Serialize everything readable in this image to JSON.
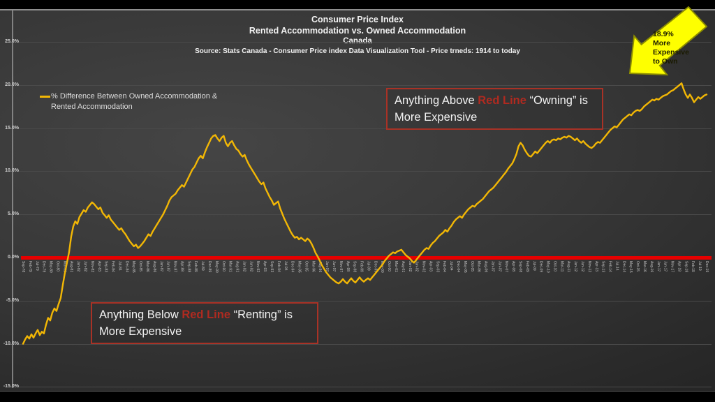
{
  "slide": {
    "title_lines": [
      "Consumer Price Index",
      "Rented Accommodation vs. Owned Accommodation",
      "Canada",
      "Source: Stats Canada - Consumer Price index Data Visualization Tool - Price trneds: 1914 to today"
    ],
    "legend": {
      "line1": "% Difference Between Owned Accommodation &",
      "line2": "Rented Accommodation"
    },
    "annotations": {
      "above": {
        "pre": "Anything Above ",
        "highlight": "Red Line",
        "post": " “Owning” is More Expensive"
      },
      "below": {
        "pre": "Anything Below ",
        "highlight": "Red Line",
        "post": " “Renting” is More Expensive"
      }
    },
    "arrow_callout": {
      "text_lines": [
        "18.9%",
        "More",
        "Expensive",
        "to Own"
      ]
    },
    "colors": {
      "line": "#f2b705",
      "zero_line": "#e60000",
      "annotation_border": "#a93226",
      "annotation_highlight": "#b02a20",
      "arrow_fill": "#feff00",
      "arrow_outline": "#8c8c00",
      "grid": "#4a4a4a"
    }
  },
  "chart_data": {
    "type": "line",
    "title": "Consumer Price Index — Rented Accommodation vs. Owned Accommodation (Canada)",
    "xlabel": "",
    "ylabel": "% difference",
    "ylim": [
      -15,
      25
    ],
    "grid": true,
    "legend_position": "top-left",
    "zero_baseline": 0,
    "final_value_pct": 18.9,
    "y_tick_labels": [
      "25.0%",
      "20.0%",
      "15.0%",
      "10.0%",
      "5.0%",
      "0.0%",
      "-5.0%",
      "-10.0%",
      "-15.0%"
    ],
    "y_tick_values": [
      25,
      20,
      15,
      10,
      5,
      0,
      -5,
      -10,
      -15
    ],
    "x_tick_labels": [
      "Sep-78",
      "Feb-79",
      "Jul-79",
      "Dec-79",
      "May-80",
      "Oct-80",
      "Mar-81",
      "Aug-81",
      "Jan-82",
      "Jun-82",
      "Nov-82",
      "Apr-83",
      "Sep-83",
      "Feb-84",
      "Jul-84",
      "Dec-84",
      "May-85",
      "Oct-85",
      "Mar-86",
      "Aug-86",
      "Jan-87",
      "Jun-87",
      "Nov-87",
      "Apr-88",
      "Sep-88",
      "Feb-89",
      "Jul-89",
      "Dec-89",
      "May-90",
      "Oct-90",
      "Mar-91",
      "Aug-91",
      "Jan-92",
      "Jun-92",
      "Nov-92",
      "Apr-93",
      "Sep-93",
      "Feb-94",
      "Jul-94",
      "Dec-94",
      "May-95",
      "Oct-95",
      "Mar-96",
      "Aug-96",
      "Jan-97",
      "Jun-97",
      "Nov-97",
      "Apr-98",
      "Sep-98",
      "Feb-99",
      "Jul-99",
      "Dec-99",
      "May-00",
      "Oct-00",
      "Mar-01",
      "Aug-01",
      "Jan-02",
      "Jun-02",
      "Nov-02",
      "Apr-03",
      "Sep-03",
      "Feb-04",
      "Jul-04",
      "Dec-04",
      "May-05",
      "Oct-05",
      "Mar-06",
      "Aug-06",
      "Jan-07",
      "Jun-07",
      "Nov-07",
      "Apr-08",
      "Sep-08",
      "Feb-09",
      "Jul-09",
      "Dec-09",
      "May-10",
      "Oct-10",
      "Mar-11",
      "Aug-11",
      "Jan-12",
      "Jun-12",
      "Nov-12",
      "Apr-13",
      "Sep-13",
      "Feb-14",
      "Jul-14",
      "Dec-14",
      "May-15",
      "Oct-15",
      "Mar-16",
      "Aug-16",
      "Jan-17",
      "Jun-17",
      "Nov-17",
      "Apr-18",
      "Sep-18",
      "Feb-19",
      "Jul-19",
      "Dec-19"
    ],
    "series": [
      {
        "name": "% Difference Between Owned Accommodation & Rented Accommodation",
        "values": [
          -10.0,
          -9.5,
          -9.1,
          -9.4,
          -8.9,
          -9.3,
          -8.8,
          -8.4,
          -9.0,
          -8.6,
          -8.8,
          -7.8,
          -7.0,
          -7.3,
          -6.4,
          -5.9,
          -6.2,
          -5.4,
          -4.7,
          -3.2,
          -1.8,
          -0.6,
          0.6,
          2.4,
          3.6,
          4.2,
          3.9,
          4.7,
          5.1,
          5.5,
          5.3,
          5.8,
          6.1,
          6.4,
          6.2,
          5.9,
          5.6,
          5.8,
          5.2,
          4.9,
          4.6,
          4.9,
          4.4,
          4.1,
          3.8,
          3.5,
          3.2,
          3.4,
          3.0,
          2.7,
          2.3,
          1.9,
          1.6,
          1.3,
          1.5,
          1.1,
          1.3,
          1.6,
          1.9,
          2.3,
          2.7,
          2.5,
          3.0,
          3.4,
          3.8,
          4.2,
          4.6,
          5.0,
          5.5,
          6.0,
          6.6,
          7.0,
          7.2,
          7.4,
          7.8,
          8.1,
          8.4,
          8.2,
          8.7,
          9.2,
          9.7,
          10.2,
          10.5,
          11.0,
          11.5,
          11.8,
          11.5,
          12.2,
          12.8,
          13.3,
          13.8,
          14.1,
          14.2,
          13.8,
          13.5,
          13.9,
          14.1,
          13.3,
          12.9,
          13.3,
          13.5,
          13.0,
          12.6,
          12.4,
          12.0,
          11.7,
          11.9,
          11.3,
          10.8,
          10.4,
          10.0,
          9.6,
          9.2,
          8.8,
          8.5,
          8.7,
          8.0,
          7.5,
          7.0,
          6.6,
          6.1,
          6.3,
          6.5,
          5.7,
          5.1,
          4.5,
          4.0,
          3.5,
          3.0,
          2.6,
          2.3,
          2.4,
          2.1,
          2.3,
          2.1,
          1.9,
          2.2,
          2.0,
          1.6,
          1.1,
          0.5,
          0.1,
          -0.4,
          -0.9,
          -1.3,
          -1.7,
          -2.0,
          -2.3,
          -2.5,
          -2.7,
          -2.9,
          -3.0,
          -2.8,
          -2.5,
          -2.8,
          -3.0,
          -2.7,
          -2.4,
          -2.7,
          -2.9,
          -2.6,
          -2.3,
          -2.6,
          -2.8,
          -2.6,
          -2.4,
          -2.6,
          -2.3,
          -2.0,
          -1.7,
          -1.4,
          -1.1,
          -0.8,
          -0.4,
          -0.1,
          0.2,
          0.4,
          0.6,
          0.5,
          0.7,
          0.8,
          0.9,
          0.6,
          0.3,
          0.1,
          -0.1,
          -0.4,
          -0.6,
          -0.3,
          0.0,
          0.3,
          0.6,
          0.9,
          1.1,
          1.0,
          1.4,
          1.7,
          1.9,
          2.2,
          2.5,
          2.7,
          2.9,
          3.2,
          3.0,
          3.4,
          3.7,
          4.1,
          4.4,
          4.6,
          4.8,
          4.6,
          5.0,
          5.3,
          5.6,
          5.8,
          6.0,
          5.9,
          6.2,
          6.4,
          6.6,
          6.8,
          7.1,
          7.4,
          7.7,
          7.9,
          8.1,
          8.4,
          8.7,
          9.0,
          9.3,
          9.6,
          9.9,
          10.3,
          10.6,
          10.9,
          11.4,
          12.0,
          12.9,
          13.3,
          13.0,
          12.5,
          12.1,
          11.8,
          11.7,
          12.0,
          12.3,
          12.1,
          12.4,
          12.7,
          13.0,
          13.3,
          13.5,
          13.3,
          13.6,
          13.7,
          13.6,
          13.8,
          13.7,
          13.9,
          14.0,
          13.9,
          14.1,
          14.0,
          13.8,
          13.6,
          13.8,
          13.5,
          13.3,
          13.5,
          13.2,
          13.0,
          12.8,
          12.7,
          12.9,
          13.2,
          13.4,
          13.3,
          13.6,
          13.9,
          14.2,
          14.5,
          14.8,
          15.0,
          15.2,
          15.1,
          15.4,
          15.7,
          16.0,
          16.2,
          16.4,
          16.6,
          16.5,
          16.8,
          17.0,
          17.1,
          17.0,
          17.2,
          17.5,
          17.7,
          17.9,
          18.1,
          18.3,
          18.2,
          18.4,
          18.3,
          18.5,
          18.7,
          18.8,
          18.9,
          19.1,
          19.3,
          19.4,
          19.6,
          19.8,
          20.0,
          20.2,
          19.5,
          18.9,
          18.5,
          18.9,
          18.5,
          18.0,
          18.3,
          18.6,
          18.4,
          18.6,
          18.8,
          18.9
        ]
      }
    ]
  }
}
